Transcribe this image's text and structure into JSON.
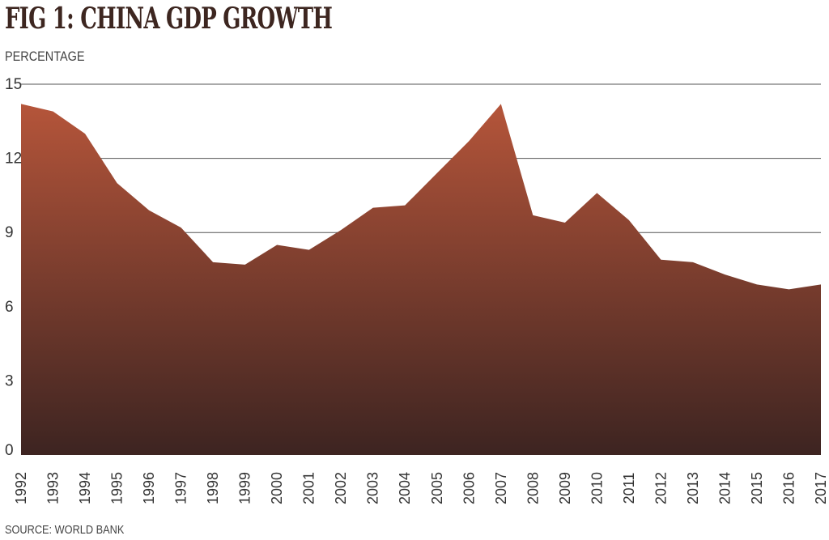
{
  "header": {
    "title": "FIG 1: CHINA GDP GROWTH",
    "subtitle": "PERCENTAGE"
  },
  "footer": {
    "source": "SOURCE: WORLD BANK"
  },
  "chart_data": {
    "type": "area",
    "title": "FIG 1: CHINA GDP GROWTH",
    "subtitle": "PERCENTAGE",
    "x": [
      "1992",
      "1993",
      "1994",
      "1995",
      "1996",
      "1997",
      "1998",
      "1999",
      "2000",
      "2001",
      "2002",
      "2003",
      "2004",
      "2005",
      "2006",
      "2007",
      "2008",
      "2009",
      "2010",
      "2011",
      "2012",
      "2013",
      "2014",
      "2015",
      "2016",
      "2017"
    ],
    "series": [
      {
        "values": [
          14.2,
          13.9,
          13.0,
          11.0,
          9.9,
          9.2,
          7.8,
          7.7,
          8.5,
          8.3,
          9.1,
          10.0,
          10.1,
          11.4,
          12.7,
          14.2,
          9.7,
          9.4,
          10.6,
          9.5,
          7.9,
          7.8,
          7.3,
          6.9,
          6.7,
          6.9
        ]
      }
    ],
    "ylim": [
      0,
      15
    ],
    "yticks": [
      0,
      3,
      6,
      9,
      12,
      15
    ],
    "grid": true,
    "colors": {
      "fill_top": "#b5553a",
      "fill_bottom": "#3d2421",
      "grid": "#555555"
    },
    "source": "SOURCE: WORLD BANK"
  }
}
